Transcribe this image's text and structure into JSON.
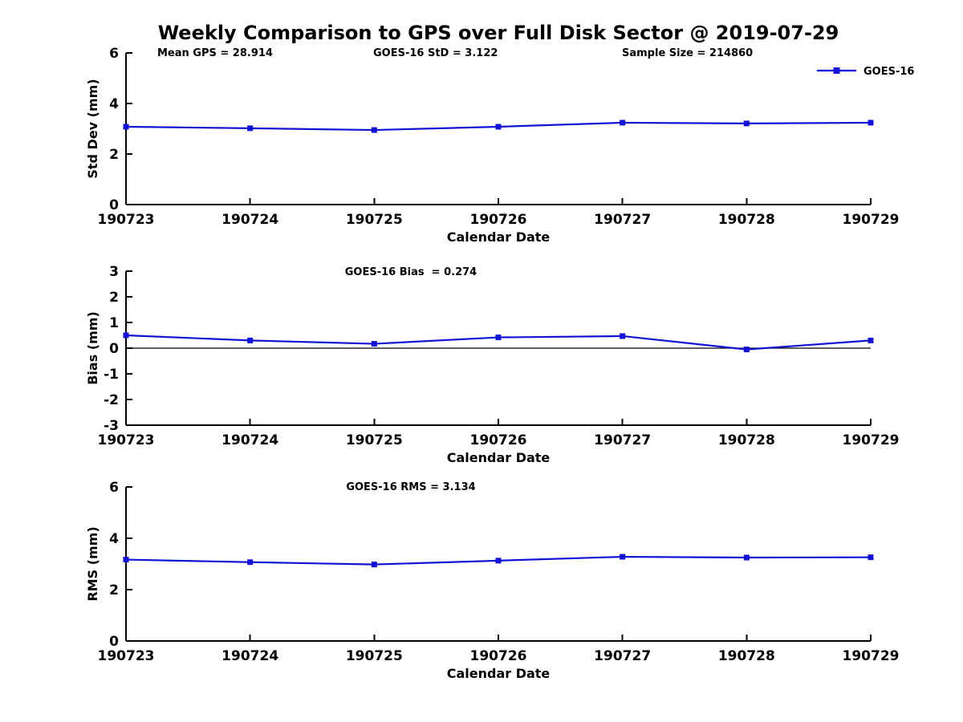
{
  "figure_title": "Weekly Comparison to GPS over Full Disk Sector @ 2019-07-29",
  "colors": {
    "line": "#1212d6",
    "axis": "#000000",
    "zero_line": "#000000",
    "text": "#000000",
    "background": "#ffffff"
  },
  "legend": {
    "label": "GOES-16",
    "position": "upper-right"
  },
  "chart_data": [
    {
      "type": "line",
      "name": "std-dev",
      "categories": [
        "190723",
        "190724",
        "190725",
        "190726",
        "190727",
        "190728",
        "190729"
      ],
      "series": [
        {
          "name": "GOES-16",
          "values": [
            3.08,
            3.02,
            2.95,
            3.08,
            3.24,
            3.21,
            3.24
          ]
        }
      ],
      "annotations": [
        "Mean GPS = 28.914",
        "GOES-16 StD = 3.122",
        "Sample Size = 214860"
      ],
      "xlabel": "Calendar Date",
      "ylabel": "Std Dev (mm)",
      "ylim": [
        0,
        6
      ],
      "yticks": [
        0,
        2,
        4,
        6
      ],
      "grid": false,
      "zero_line": false,
      "legend_visible": true
    },
    {
      "type": "line",
      "name": "bias",
      "categories": [
        "190723",
        "190724",
        "190725",
        "190726",
        "190727",
        "190728",
        "190729"
      ],
      "series": [
        {
          "name": "GOES-16",
          "values": [
            0.5,
            0.3,
            0.17,
            0.42,
            0.47,
            -0.05,
            0.3
          ]
        }
      ],
      "annotations": [
        "GOES-16 Bias  = 0.274"
      ],
      "xlabel": "Calendar Date",
      "ylabel": "Bias (mm)",
      "ylim": [
        -3,
        3
      ],
      "yticks": [
        -3,
        -2,
        -1,
        0,
        1,
        2,
        3
      ],
      "grid": false,
      "zero_line": true,
      "legend_visible": false
    },
    {
      "type": "line",
      "name": "rms",
      "categories": [
        "190723",
        "190724",
        "190725",
        "190726",
        "190727",
        "190728",
        "190729"
      ],
      "series": [
        {
          "name": "GOES-16",
          "values": [
            3.17,
            3.07,
            2.98,
            3.13,
            3.28,
            3.25,
            3.26
          ]
        }
      ],
      "annotations": [
        "GOES-16 RMS = 3.134"
      ],
      "xlabel": "Calendar Date",
      "ylabel": "RMS (mm)",
      "ylim": [
        0,
        6
      ],
      "yticks": [
        0,
        2,
        4,
        6
      ],
      "grid": false,
      "zero_line": false,
      "legend_visible": false
    }
  ]
}
